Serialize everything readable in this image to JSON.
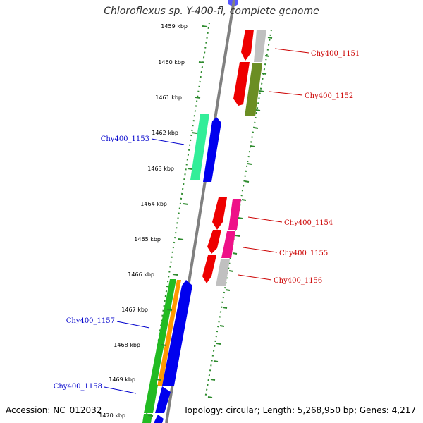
{
  "title": "Chloroflexus sp. Y-400-fl, complete genome",
  "footer": {
    "accession": "Accession: NC_012032",
    "topology": "Topology: circular; Length: 5,268,950 bp; Genes: 4,217"
  },
  "colors": {
    "backbone": "#808080",
    "tick_dots": "#2e8b2e",
    "forward_label": "#cc0000",
    "reverse_label": "#0000cc"
  },
  "kbp_ticks": [
    "1459 kbp",
    "1460 kbp",
    "1461 kbp",
    "1462 kbp",
    "1463 kbp",
    "1464 kbp",
    "1465 kbp",
    "1466 kbp",
    "1467 kbp",
    "1468 kbp",
    "1469 kbp",
    "1470 kbp"
  ],
  "genes": [
    {
      "label": "Chy400_1151",
      "strand": "forward"
    },
    {
      "label": "Chy400_1152",
      "strand": "forward"
    },
    {
      "label": "Chy400_1153",
      "strand": "reverse"
    },
    {
      "label": "Chy400_1154",
      "strand": "forward"
    },
    {
      "label": "Chy400_1155",
      "strand": "forward"
    },
    {
      "label": "Chy400_1156",
      "strand": "forward"
    },
    {
      "label": "Chy400_1157",
      "strand": "reverse"
    },
    {
      "label": "Chy400_1158",
      "strand": "reverse"
    }
  ]
}
